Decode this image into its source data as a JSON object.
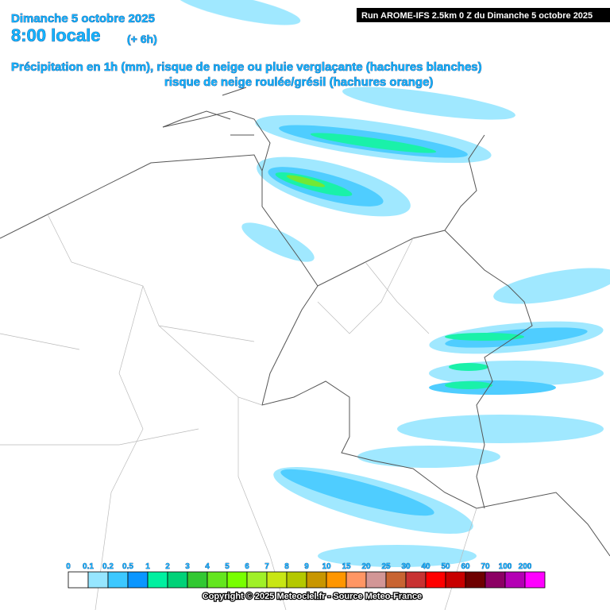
{
  "header": {
    "date": "Dimanche 5 octobre 2025",
    "time": "8:00 locale",
    "offset": "(+ 6h)",
    "line1": "Précipitation en 1h (mm), risque de neige ou pluie verglaçante (hachures blanches)",
    "line2": "risque de neige roulée/grésil (hachures orange)",
    "run": "Run AROME-IFS 2.5km 0 Z du Dimanche 5 octobre 2025"
  },
  "legend": {
    "items": [
      {
        "label": "0",
        "color": "#ffffff"
      },
      {
        "label": "0.1",
        "color": "#96e6ff"
      },
      {
        "label": "0.2",
        "color": "#3cc8ff"
      },
      {
        "label": "0.5",
        "color": "#0a96ff"
      },
      {
        "label": "1",
        "color": "#00f0a0"
      },
      {
        "label": "2",
        "color": "#00d278"
      },
      {
        "label": "3",
        "color": "#32c832"
      },
      {
        "label": "4",
        "color": "#64e61e"
      },
      {
        "label": "5",
        "color": "#78ff00"
      },
      {
        "label": "6",
        "color": "#a0f028"
      },
      {
        "label": "7",
        "color": "#c8e614"
      },
      {
        "label": "8",
        "color": "#b4c800"
      },
      {
        "label": "9",
        "color": "#c89600"
      },
      {
        "label": "10",
        "color": "#ff9600"
      },
      {
        "label": "15",
        "color": "#ff9664"
      },
      {
        "label": "20",
        "color": "#d29696"
      },
      {
        "label": "25",
        "color": "#c86432"
      },
      {
        "label": "30",
        "color": "#c83232"
      },
      {
        "label": "40",
        "color": "#ff0000"
      },
      {
        "label": "50",
        "color": "#c80000"
      },
      {
        "label": "60",
        "color": "#6e0000"
      },
      {
        "label": "70",
        "color": "#8c0064"
      },
      {
        "label": "100",
        "color": "#b400b4"
      },
      {
        "label": "200",
        "color": "#ff00ff"
      }
    ]
  },
  "footer": {
    "copyright": "Copyright © 2025 Meteociel.fr - Source Meteo-France"
  }
}
